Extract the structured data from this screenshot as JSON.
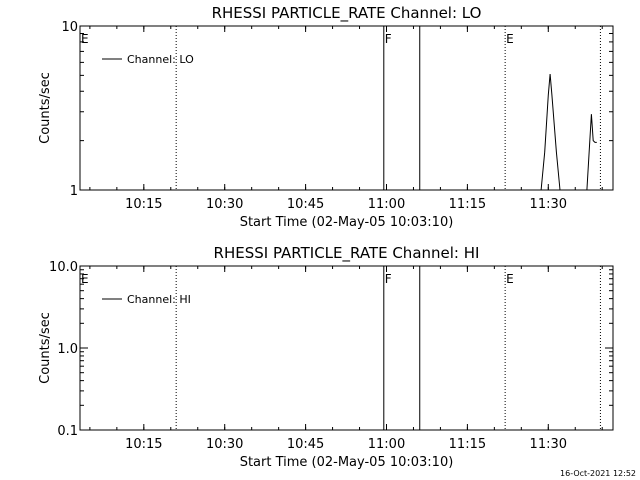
{
  "footer": {
    "timestamp": "16-Oct-2021 12:52"
  },
  "chart_data": [
    {
      "type": "line",
      "title": "RHESSI PARTICLE_RATE Channel: LO",
      "xlabel": "Start Time (02-May-05 10:03:10)",
      "ylabel": "Counts/sec",
      "yscale": "log",
      "xlim": [
        "10:03:10",
        "11:42:00"
      ],
      "ylim": [
        1,
        10
      ],
      "x_ticks": [
        "10:15",
        "10:30",
        "10:45",
        "11:00",
        "11:15",
        "11:30"
      ],
      "y_ticks": [
        "1",
        "10"
      ],
      "legend": {
        "entries": [
          "Channel: LO"
        ],
        "placement": "top-left"
      },
      "grid": false,
      "markers": [
        {
          "label": "E",
          "time": "10:03:10",
          "style": "none"
        },
        {
          "label": "",
          "time": "10:21:00",
          "style": "dotted"
        },
        {
          "label": "F",
          "time": "10:59:30",
          "style": "solid"
        },
        {
          "label": "",
          "time": "11:06:10",
          "style": "solid"
        },
        {
          "label": "E",
          "time": "11:22:00",
          "style": "dotted"
        },
        {
          "label": "",
          "time": "11:39:40",
          "style": "dotted"
        }
      ],
      "series": [
        {
          "name": "Channel: LO",
          "segments": [
            {
              "x": [
                "11:28:40",
                "11:29:20",
                "11:30:00",
                "11:30:20",
                "11:30:40",
                "11:31:30",
                "11:32:10"
              ],
              "y": [
                1,
                1.7,
                3.8,
                5.1,
                3.8,
                1.7,
                1
              ]
            },
            {
              "x": [
                "11:37:10",
                "11:37:40",
                "11:38:00",
                "11:38:20",
                "11:38:40",
                "11:39:00"
              ],
              "y": [
                1,
                1.9,
                2.9,
                2.0,
                1.95,
                1.95
              ]
            }
          ]
        }
      ]
    },
    {
      "type": "line",
      "title": "RHESSI PARTICLE_RATE Channel: HI",
      "xlabel": "Start Time (02-May-05 10:03:10)",
      "ylabel": "Counts/sec",
      "yscale": "log",
      "xlim": [
        "10:03:10",
        "11:42:00"
      ],
      "ylim": [
        0.1,
        10.0
      ],
      "x_ticks": [
        "10:15",
        "10:30",
        "10:45",
        "11:00",
        "11:15",
        "11:30"
      ],
      "y_ticks": [
        "0.1",
        "1.0",
        "10.0"
      ],
      "legend": {
        "entries": [
          "Channel: HI"
        ],
        "placement": "top-left"
      },
      "grid": false,
      "markers": [
        {
          "label": "E",
          "time": "10:03:10",
          "style": "none"
        },
        {
          "label": "",
          "time": "10:21:00",
          "style": "dotted"
        },
        {
          "label": "F",
          "time": "10:59:30",
          "style": "solid"
        },
        {
          "label": "",
          "time": "11:06:10",
          "style": "solid"
        },
        {
          "label": "E",
          "time": "11:22:00",
          "style": "dotted"
        },
        {
          "label": "",
          "time": "11:39:40",
          "style": "dotted"
        }
      ],
      "series": [
        {
          "name": "Channel: HI",
          "segments": []
        }
      ]
    }
  ]
}
